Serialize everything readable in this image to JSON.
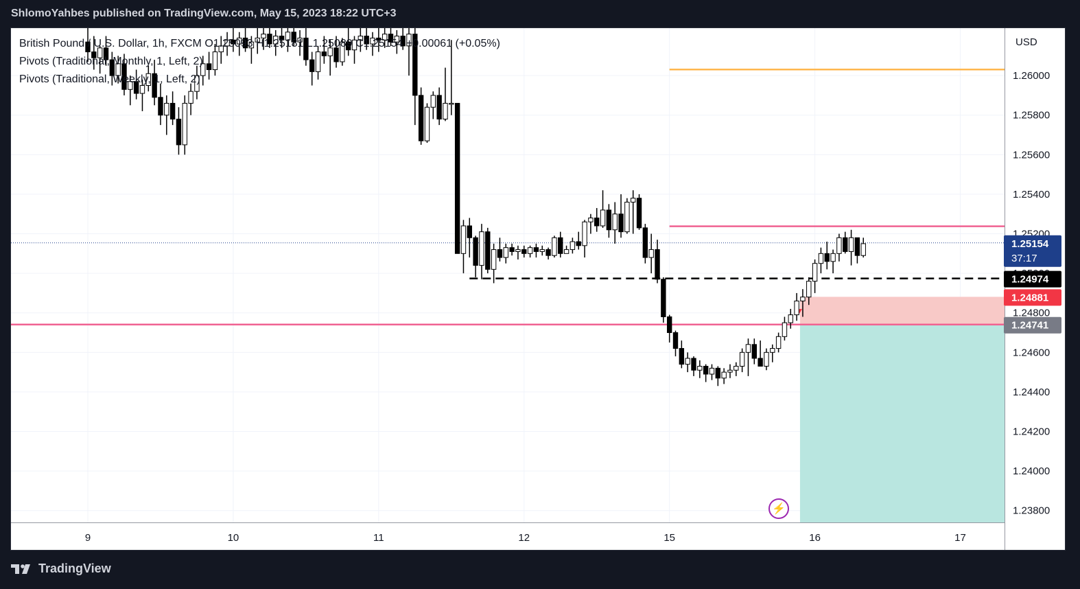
{
  "header": {
    "publisher_line": "ShlomoYahbes published on TradingView.com, May 15, 2023 18:22 UTC+3"
  },
  "legend": {
    "symbol_line": "British Pound / U.S. Dollar, 1h, FXCM  O1.25093  H1.25181  L1.25089  C1.25154  +0.00061 (+0.05%)",
    "pivots_monthly": "Pivots (Traditional, Monthly, 1, Left, 2)",
    "pivots_weekly": "Pivots (Traditional, Weekly, 1, Left, 2)"
  },
  "footer": {
    "brand": "TradingView",
    "logo_icon": "tradingview-logo-icon"
  },
  "price_labels": {
    "current_price": "1.25154",
    "countdown": "37:17",
    "entry": "1.24974",
    "stop": "1.24881",
    "target_line": "1.24741"
  },
  "colors": {
    "bull": "#ffffff",
    "bear": "#000000",
    "pivot_pink": "#f06292",
    "pivot_orange": "#ffb74d",
    "stop_zone": "#f8c9c7",
    "target_zone": "#b9e6e0",
    "price_label_blue": "#1e3f8a",
    "stop_label_red": "#f23645"
  },
  "chart_data": {
    "type": "candlestick",
    "title": "British Pound / U.S. Dollar, 1h, FXCM",
    "y_axis_unit": "USD",
    "ylim": [
      1.2374,
      1.2624
    ],
    "yticks": [
      "1.26000",
      "1.25800",
      "1.25600",
      "1.25400",
      "1.25200",
      "1.25000",
      "1.24800",
      "1.24600",
      "1.24400",
      "1.24200",
      "1.24000",
      "1.23800"
    ],
    "xticks": [
      {
        "label": "9",
        "pos": 0
      },
      {
        "label": "10",
        "pos": 24
      },
      {
        "label": "11",
        "pos": 48
      },
      {
        "label": "12",
        "pos": 72
      },
      {
        "label": "15",
        "pos": 96
      },
      {
        "label": "16",
        "pos": 120
      },
      {
        "label": "17",
        "pos": 144
      }
    ],
    "candles": [
      [
        1.2617,
        1.2624,
        1.2607,
        1.2612
      ],
      [
        1.2612,
        1.262,
        1.2603,
        1.2609
      ],
      [
        1.2609,
        1.2615,
        1.2601,
        1.2614
      ],
      [
        1.2614,
        1.262,
        1.2605,
        1.2608
      ],
      [
        1.2608,
        1.2612,
        1.2595,
        1.26
      ],
      [
        1.26,
        1.261,
        1.2596,
        1.2606
      ],
      [
        1.2606,
        1.2611,
        1.259,
        1.2593
      ],
      [
        1.2593,
        1.26,
        1.2585,
        1.2597
      ],
      [
        1.2597,
        1.2603,
        1.2588,
        1.2591
      ],
      [
        1.2591,
        1.2598,
        1.2582,
        1.2595
      ],
      [
        1.2595,
        1.2605,
        1.2592,
        1.2601
      ],
      [
        1.2601,
        1.2608,
        1.2585,
        1.2589
      ],
      [
        1.2589,
        1.2596,
        1.2575,
        1.258
      ],
      [
        1.258,
        1.259,
        1.257,
        1.2586
      ],
      [
        1.2586,
        1.2592,
        1.2575,
        1.2578
      ],
      [
        1.2578,
        1.2584,
        1.256,
        1.2565
      ],
      [
        1.2565,
        1.259,
        1.256,
        1.2586
      ],
      [
        1.2586,
        1.2596,
        1.258,
        1.2592
      ],
      [
        1.2592,
        1.2605,
        1.2588,
        1.26
      ],
      [
        1.26,
        1.261,
        1.2595,
        1.2606
      ],
      [
        1.2606,
        1.2612,
        1.2598,
        1.2603
      ],
      [
        1.2603,
        1.2616,
        1.26,
        1.2612
      ],
      [
        1.2612,
        1.262,
        1.2606,
        1.2615
      ],
      [
        1.2615,
        1.2622,
        1.261,
        1.2618
      ],
      [
        1.2618,
        1.2624,
        1.2612,
        1.2616
      ],
      [
        1.2616,
        1.2622,
        1.261,
        1.2619
      ],
      [
        1.2619,
        1.2624,
        1.2612,
        1.2614
      ],
      [
        1.2614,
        1.262,
        1.2606,
        1.2617
      ],
      [
        1.2617,
        1.2624,
        1.2611,
        1.2619
      ],
      [
        1.2619,
        1.2624,
        1.2613,
        1.2621
      ],
      [
        1.2621,
        1.2624,
        1.2614,
        1.2616
      ],
      [
        1.2616,
        1.2623,
        1.261,
        1.262
      ],
      [
        1.262,
        1.2624,
        1.2614,
        1.2618
      ],
      [
        1.2618,
        1.2624,
        1.2612,
        1.2622
      ],
      [
        1.2622,
        1.2624,
        1.2615,
        1.2617
      ],
      [
        1.2617,
        1.2623,
        1.261,
        1.2619
      ],
      [
        1.2619,
        1.2624,
        1.2605,
        1.2608
      ],
      [
        1.2608,
        1.2612,
        1.2595,
        1.2602
      ],
      [
        1.2602,
        1.2615,
        1.2598,
        1.2612
      ],
      [
        1.2612,
        1.262,
        1.2606,
        1.261
      ],
      [
        1.261,
        1.2618,
        1.26,
        1.2614
      ],
      [
        1.2614,
        1.262,
        1.2604,
        1.2607
      ],
      [
        1.2607,
        1.2619,
        1.2605,
        1.2617
      ],
      [
        1.2617,
        1.2624,
        1.261,
        1.2613
      ],
      [
        1.2613,
        1.262,
        1.2606,
        1.2618
      ],
      [
        1.2618,
        1.2624,
        1.2612,
        1.262
      ],
      [
        1.262,
        1.2624,
        1.2613,
        1.2616
      ],
      [
        1.2616,
        1.2622,
        1.261,
        1.2619
      ],
      [
        1.2619,
        1.2624,
        1.2612,
        1.2618
      ],
      [
        1.2618,
        1.2624,
        1.2614,
        1.2621
      ],
      [
        1.2621,
        1.2624,
        1.2615,
        1.2617
      ],
      [
        1.2617,
        1.2623,
        1.2611,
        1.262
      ],
      [
        1.262,
        1.2624,
        1.2613,
        1.2615
      ],
      [
        1.2615,
        1.2624,
        1.26,
        1.2621
      ],
      [
        1.2621,
        1.2624,
        1.2575,
        1.259
      ],
      [
        1.259,
        1.2594,
        1.2565,
        1.2567
      ],
      [
        1.2567,
        1.2586,
        1.2566,
        1.2584
      ],
      [
        1.2584,
        1.2592,
        1.2578,
        1.259
      ],
      [
        1.259,
        1.2594,
        1.2575,
        1.2578
      ],
      [
        1.2578,
        1.2604,
        1.2577,
        1.2586
      ],
      [
        1.2586,
        1.2618,
        1.258,
        1.2586
      ],
      [
        1.2586,
        1.2586,
        1.251,
        1.251
      ],
      [
        1.251,
        1.2527,
        1.25,
        1.2524
      ],
      [
        1.2524,
        1.2528,
        1.2508,
        1.2518
      ],
      [
        1.2518,
        1.2519,
        1.2498,
        1.2504
      ],
      [
        1.2504,
        1.2525,
        1.2497,
        1.2521
      ],
      [
        1.2521,
        1.2523,
        1.25,
        1.2502
      ],
      [
        1.2502,
        1.2515,
        1.2495,
        1.2512
      ],
      [
        1.2512,
        1.2518,
        1.2506,
        1.2508
      ],
      [
        1.2508,
        1.2515,
        1.2505,
        1.2513
      ],
      [
        1.2513,
        1.2515,
        1.2509,
        1.2511
      ],
      [
        1.2511,
        1.2514,
        1.2507,
        1.2512
      ],
      [
        1.2512,
        1.2514,
        1.2508,
        1.251
      ],
      [
        1.251,
        1.2514,
        1.2508,
        1.2513
      ],
      [
        1.2513,
        1.2515,
        1.2508,
        1.2511
      ],
      [
        1.2511,
        1.2514,
        1.2509,
        1.2512
      ],
      [
        1.2512,
        1.2513,
        1.2507,
        1.2509
      ],
      [
        1.2509,
        1.2519,
        1.2508,
        1.2518
      ],
      [
        1.2518,
        1.2521,
        1.2508,
        1.251
      ],
      [
        1.251,
        1.2514,
        1.251,
        1.2512
      ],
      [
        1.2512,
        1.2518,
        1.251,
        1.2516
      ],
      [
        1.2516,
        1.2521,
        1.2512,
        1.2514
      ],
      [
        1.2514,
        1.2527,
        1.2508,
        1.2526
      ],
      [
        1.2526,
        1.253,
        1.252,
        1.2528
      ],
      [
        1.2528,
        1.2533,
        1.2521,
        1.2524
      ],
      [
        1.2524,
        1.2542,
        1.2523,
        1.2532
      ],
      [
        1.2532,
        1.2535,
        1.2518,
        1.2522
      ],
      [
        1.2522,
        1.2536,
        1.2515,
        1.253
      ],
      [
        1.253,
        1.254,
        1.2518,
        1.2521
      ],
      [
        1.2521,
        1.2538,
        1.252,
        1.2536
      ],
      [
        1.2536,
        1.2542,
        1.252,
        1.2538
      ],
      [
        1.2538,
        1.254,
        1.2522,
        1.2523
      ],
      [
        1.2523,
        1.2525,
        1.2505,
        1.2508
      ],
      [
        1.2508,
        1.252,
        1.25,
        1.2512
      ],
      [
        1.2512,
        1.2517,
        1.2495,
        1.2497
      ],
      [
        1.2497,
        1.2498,
        1.2475,
        1.2478
      ],
      [
        1.2478,
        1.2479,
        1.2465,
        1.247
      ],
      [
        1.247,
        1.2471,
        1.2458,
        1.2462
      ],
      [
        1.2462,
        1.2466,
        1.2452,
        1.2454
      ],
      [
        1.2454,
        1.246,
        1.245,
        1.2457
      ],
      [
        1.2457,
        1.2458,
        1.2448,
        1.2451
      ],
      [
        1.2451,
        1.2456,
        1.2447,
        1.2453
      ],
      [
        1.2453,
        1.2454,
        1.2445,
        1.2449
      ],
      [
        1.2449,
        1.2454,
        1.2446,
        1.2452
      ],
      [
        1.2452,
        1.2453,
        1.2443,
        1.2447
      ],
      [
        1.2447,
        1.2452,
        1.2444,
        1.245
      ],
      [
        1.245,
        1.2454,
        1.2447,
        1.2451
      ],
      [
        1.2451,
        1.2455,
        1.2448,
        1.2453
      ],
      [
        1.2453,
        1.2462,
        1.245,
        1.246
      ],
      [
        1.246,
        1.2467,
        1.2448,
        1.2464
      ],
      [
        1.2464,
        1.2467,
        1.2454,
        1.2457
      ],
      [
        1.2457,
        1.2466,
        1.2453,
        1.2453
      ],
      [
        1.2453,
        1.2462,
        1.2451,
        1.246
      ],
      [
        1.246,
        1.2464,
        1.2455,
        1.2462
      ],
      [
        1.2462,
        1.247,
        1.246,
        1.2468
      ],
      [
        1.2468,
        1.2478,
        1.2466,
        1.2475
      ],
      [
        1.2475,
        1.2482,
        1.2472,
        1.2479
      ],
      [
        1.2479,
        1.249,
        1.2476,
        1.2486
      ],
      [
        1.2486,
        1.2492,
        1.2478,
        1.2488
      ],
      [
        1.2488,
        1.2498,
        1.2484,
        1.2496
      ],
      [
        1.2496,
        1.2507,
        1.249,
        1.2505
      ],
      [
        1.2505,
        1.2513,
        1.25,
        1.251
      ],
      [
        1.251,
        1.2516,
        1.2502,
        1.2506
      ],
      [
        1.2506,
        1.2512,
        1.25,
        1.251
      ],
      [
        1.251,
        1.252,
        1.2506,
        1.2518
      ],
      [
        1.2518,
        1.2521,
        1.251,
        1.2511
      ],
      [
        1.2511,
        1.2522,
        1.2504,
        1.2518
      ],
      [
        1.2518,
        1.2518,
        1.2505,
        1.2509
      ],
      [
        1.2509,
        1.2518,
        1.2508,
        1.2515
      ]
    ],
    "horizontal_lines": [
      {
        "name": "monthly-pivot",
        "price": 1.24741,
        "from": 0,
        "color": "#f06292"
      },
      {
        "name": "weekly-pivot-r1",
        "price": 1.25238,
        "from": 96,
        "color": "#f06292"
      },
      {
        "name": "weekly-pivot-r2",
        "price": 1.26031,
        "from": 96,
        "color": "#ffb74d"
      },
      {
        "name": "entry-dashed",
        "price": 1.24974,
        "from": 63,
        "color": "#000000"
      },
      {
        "name": "last-price-dotted",
        "price": 1.25154,
        "from": 0,
        "color": "#1e3f8a"
      }
    ],
    "short_position": {
      "entry": 1.24741,
      "stop": 1.24881,
      "target": 1.2374,
      "from_index": 118
    }
  }
}
